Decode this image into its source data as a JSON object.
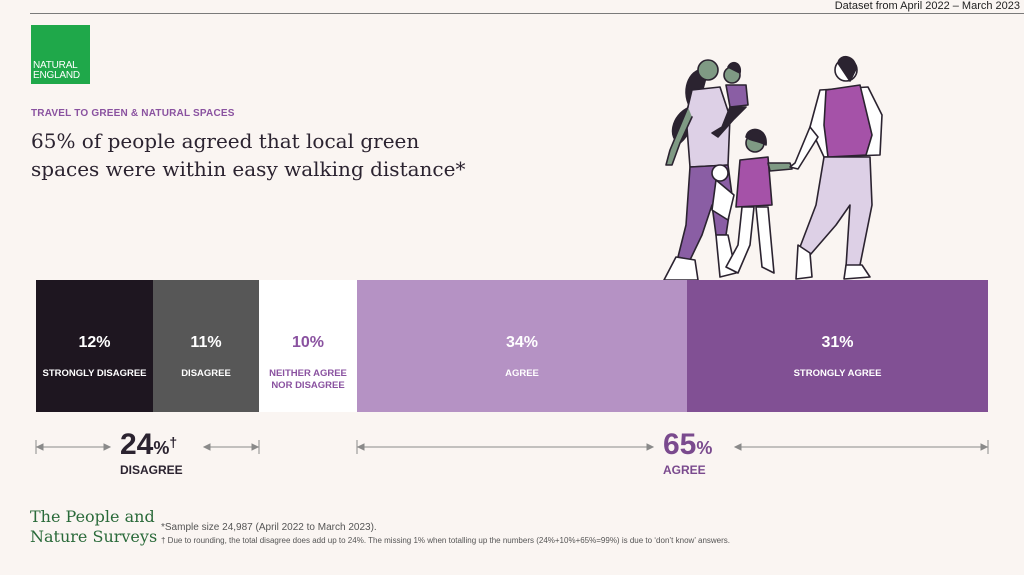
{
  "header": {
    "dataset": "Dataset from April 2022 – March 2023",
    "logo_line1": "NATURAL",
    "logo_line2": "ENGLAND",
    "eyebrow": "TRAVEL TO GREEN & NATURAL SPACES",
    "headline": "65% of people agreed that local green spaces were within easy walking distance*"
  },
  "chart_data": {
    "type": "bar",
    "orientation": "horizontal-stacked",
    "categories": [
      "STRONGLY DISAGREE",
      "DISAGREE",
      "NEITHER AGREE NOR DISAGREE",
      "AGREE",
      "STRONGLY AGREE"
    ],
    "values": [
      12,
      11,
      10,
      34,
      31
    ],
    "labels": [
      "12%",
      "11%",
      "10%",
      "34%",
      "31%"
    ],
    "colors": [
      "#1e1620",
      "#575757",
      "#ffffff",
      "#b592c4",
      "#815094"
    ],
    "text_colors": [
      "#ffffff",
      "#ffffff",
      "#8a52a0",
      "#ffffff",
      "#ffffff"
    ],
    "groups": [
      {
        "name": "DISAGREE",
        "value_label": "24",
        "unit": "%",
        "mark": "†",
        "color": "#2b2330"
      },
      {
        "name": "AGREE",
        "value_label": "65",
        "unit": "%",
        "mark": "",
        "color": "#7a4a8e"
      }
    ]
  },
  "footer": {
    "brand_line1": "The People and",
    "brand_line2": "Nature Surveys",
    "note1": "*Sample size 24,987 (April 2022 to March 2023).",
    "note2": "† Due to rounding, the total disagree does add up to 24%. The missing 1% when totalling up the numbers (24%+10%+65%=99%) is due to ‘don’t know’ answers."
  }
}
